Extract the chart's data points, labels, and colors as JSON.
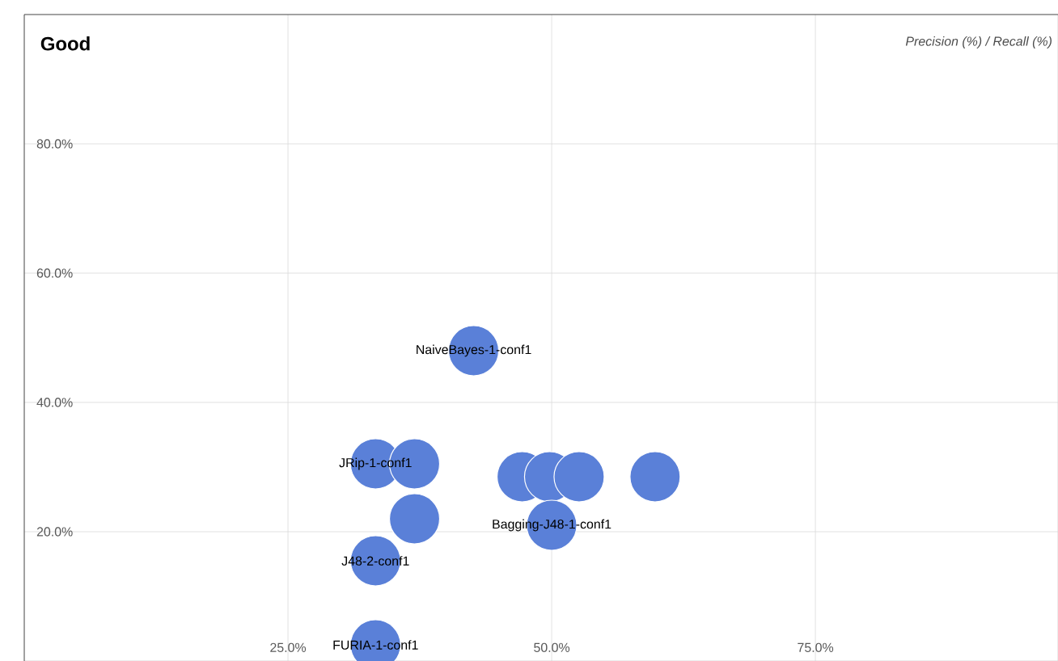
{
  "chart_data": {
    "type": "scatter",
    "title": "Good",
    "annotations": [
      "Precision (%) / Recall (%)",
      {
        "text": "NaiveBayes-1-conf1",
        "x": 42.6,
        "y": 48
      },
      {
        "text": "JRip-1-conf1",
        "x": 33.3,
        "y": 30.5
      },
      {
        "text": "J48-2-conf1",
        "x": 33.3,
        "y": 15.5
      },
      {
        "text": "FURIA-1-conf1",
        "x": 33.3,
        "y": 2.5
      },
      {
        "text": "Bagging-J48-1-conf1",
        "x": 50,
        "y": 21
      }
    ],
    "x": [
      42.6,
      33.3,
      37,
      37,
      33.3,
      33.3,
      47.2,
      49.8,
      52.6,
      59.8,
      50
    ],
    "values": [
      48,
      30.5,
      30.5,
      22,
      15.5,
      2.5,
      28.5,
      28.5,
      28.5,
      28.5,
      21
    ],
    "color": "#5a80d8",
    "xlim": [
      0,
      98
    ],
    "ylim": [
      0,
      100
    ],
    "xticks": [
      {
        "value": 25,
        "label": "25.0%"
      },
      {
        "value": 50,
        "label": "50.0%"
      },
      {
        "value": 75,
        "label": "75.0%"
      }
    ],
    "yticks": [
      {
        "value": 20,
        "label": "20.0%"
      },
      {
        "value": 40,
        "label": "40.0%"
      },
      {
        "value": 60,
        "label": "60.0%"
      },
      {
        "value": 80,
        "label": "80.0%"
      }
    ],
    "grid": true
  }
}
